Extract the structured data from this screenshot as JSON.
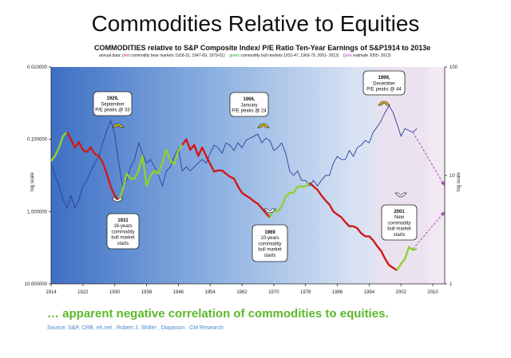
{
  "title": "Commodities Relative to Equities",
  "subtitle": "COMMODITIES relative to S&P Composite Index/ P/E Ratio Ten-Year Earnings of S&P1914 to 2013e",
  "legend": {
    "prefix": "annual data: (",
    "red": "red",
    "red_desc": " commodity bear markets 1918-31, 1947-69, 1979-01)",
    "green": "green",
    "green_desc": " commodity bull markets 1931-47, 1969-79, 2001- 2013)",
    "pink": "pink",
    "pink_desc": " estimate 2005- 2013)"
  },
  "footer": "… apparent negative correlation of commodities to equities.",
  "source": "Source:  S&P, CRB,  eh.net , Robert J.  Shiller  , Diapason  . CM Research",
  "colors": {
    "bear": "#d21818",
    "bull": "#8fd12e",
    "pe": "#2b3f9c",
    "estimate": "#a24fb0",
    "arrow": "#e4c400"
  },
  "chart_data": {
    "type": "line",
    "xlabel": "",
    "ylabel_left": "log scale",
    "ylabel_right": "log scale",
    "xlim": [
      1914,
      2013
    ],
    "x_ticks": [
      "1914",
      "1922",
      "1930",
      "1938",
      "1946",
      "1954",
      "1962",
      "1970",
      "1978",
      "1986",
      "1994",
      "2002",
      "2010"
    ],
    "left_axis": {
      "scale": "log",
      "inverted": true,
      "range": [
        0.01,
        10
      ],
      "ticks": [
        "0.010000",
        "0.100000",
        "1.000000",
        "10.000000"
      ]
    },
    "right_axis": {
      "scale": "log",
      "range": [
        1,
        100
      ],
      "ticks": [
        "100",
        "10",
        "1"
      ]
    },
    "series": [
      {
        "role": "commodities relative to S&P Composite Index",
        "axis": "left",
        "points": [
          [
            1914,
            0.2
          ],
          [
            1915,
            0.17
          ],
          [
            1916,
            0.13
          ],
          [
            1917,
            0.09
          ],
          [
            1918,
            0.08
          ],
          [
            1919,
            0.1
          ],
          [
            1920,
            0.13
          ],
          [
            1921,
            0.11
          ],
          [
            1922,
            0.14
          ],
          [
            1923,
            0.15
          ],
          [
            1924,
            0.13
          ],
          [
            1925,
            0.16
          ],
          [
            1926,
            0.17
          ],
          [
            1927,
            0.21
          ],
          [
            1928,
            0.3
          ],
          [
            1929,
            0.45
          ],
          [
            1930,
            0.6
          ],
          [
            1931,
            0.7
          ],
          [
            1932,
            0.5
          ],
          [
            1933,
            0.3
          ],
          [
            1934,
            0.35
          ],
          [
            1935,
            0.35
          ],
          [
            1936,
            0.27
          ],
          [
            1937,
            0.17
          ],
          [
            1938,
            0.44
          ],
          [
            1939,
            0.32
          ],
          [
            1940,
            0.27
          ],
          [
            1941,
            0.3
          ],
          [
            1942,
            0.21
          ],
          [
            1943,
            0.14
          ],
          [
            1944,
            0.2
          ],
          [
            1945,
            0.22
          ],
          [
            1946,
            0.14
          ],
          [
            1947,
            0.12
          ],
          [
            1948,
            0.1
          ],
          [
            1949,
            0.14
          ],
          [
            1950,
            0.12
          ],
          [
            1951,
            0.17
          ],
          [
            1952,
            0.13
          ],
          [
            1953,
            0.17
          ],
          [
            1954,
            0.22
          ],
          [
            1955,
            0.28
          ],
          [
            1956,
            0.27
          ],
          [
            1957,
            0.27
          ],
          [
            1958,
            0.3
          ],
          [
            1959,
            0.33
          ],
          [
            1960,
            0.35
          ],
          [
            1961,
            0.45
          ],
          [
            1962,
            0.55
          ],
          [
            1963,
            0.6
          ],
          [
            1964,
            0.65
          ],
          [
            1965,
            0.72
          ],
          [
            1966,
            0.78
          ],
          [
            1967,
            0.9
          ],
          [
            1968,
            1.05
          ],
          [
            1969,
            1.2
          ],
          [
            1970,
            0.95
          ],
          [
            1971,
            1.0
          ],
          [
            1972,
            0.85
          ],
          [
            1973,
            0.62
          ],
          [
            1974,
            0.55
          ],
          [
            1975,
            0.55
          ],
          [
            1976,
            0.45
          ],
          [
            1977,
            0.45
          ],
          [
            1978,
            0.45
          ],
          [
            1979,
            0.4
          ],
          [
            1980,
            0.45
          ],
          [
            1981,
            0.5
          ],
          [
            1982,
            0.6
          ],
          [
            1983,
            0.7
          ],
          [
            1984,
            0.8
          ],
          [
            1985,
            1.0
          ],
          [
            1986,
            1.1
          ],
          [
            1987,
            1.2
          ],
          [
            1988,
            1.4
          ],
          [
            1989,
            1.6
          ],
          [
            1990,
            1.6
          ],
          [
            1991,
            1.7
          ],
          [
            1992,
            2.0
          ],
          [
            1993,
            2.2
          ],
          [
            1994,
            2.2
          ],
          [
            1995,
            2.5
          ],
          [
            1996,
            3.0
          ],
          [
            1997,
            3.5
          ],
          [
            1998,
            4.5
          ],
          [
            1999,
            5.5
          ],
          [
            2000,
            6.0
          ],
          [
            2001,
            6.5
          ],
          [
            2002,
            5.3
          ],
          [
            2003,
            4.5
          ],
          [
            2004,
            3.1
          ],
          [
            2005,
            3.4
          ],
          [
            2006,
            3.3
          ]
        ],
        "segments": [
          {
            "phase": "bull",
            "from": 1914,
            "to": 1918
          },
          {
            "phase": "bear",
            "from": 1918,
            "to": 1931
          },
          {
            "phase": "bull",
            "from": 1931,
            "to": 1947
          },
          {
            "phase": "bear",
            "from": 1947,
            "to": 1969
          },
          {
            "phase": "bull",
            "from": 1969,
            "to": 1979
          },
          {
            "phase": "bear",
            "from": 1979,
            "to": 2001
          },
          {
            "phase": "bull",
            "from": 2001,
            "to": 2006
          }
        ]
      },
      {
        "role": "P/E Ratio Ten-Year Earnings of S&P",
        "axis": "right",
        "points": [
          [
            1914,
            13
          ],
          [
            1915,
            10
          ],
          [
            1916,
            8
          ],
          [
            1917,
            6
          ],
          [
            1918,
            5
          ],
          [
            1919,
            6.5
          ],
          [
            1920,
            5
          ],
          [
            1921,
            6
          ],
          [
            1922,
            8
          ],
          [
            1923,
            9
          ],
          [
            1924,
            11
          ],
          [
            1925,
            13
          ],
          [
            1926,
            15
          ],
          [
            1927,
            20
          ],
          [
            1928,
            26
          ],
          [
            1929,
            32
          ],
          [
            1930,
            24
          ],
          [
            1931,
            13
          ],
          [
            1932,
            8
          ],
          [
            1933,
            9
          ],
          [
            1934,
            12
          ],
          [
            1935,
            14
          ],
          [
            1936,
            20
          ],
          [
            1937,
            16
          ],
          [
            1938,
            13
          ],
          [
            1939,
            14
          ],
          [
            1940,
            12
          ],
          [
            1941,
            10
          ],
          [
            1942,
            8
          ],
          [
            1943,
            11
          ],
          [
            1944,
            12
          ],
          [
            1945,
            15
          ],
          [
            1946,
            18
          ],
          [
            1947,
            11
          ],
          [
            1948,
            12
          ],
          [
            1949,
            11
          ],
          [
            1950,
            12
          ],
          [
            1951,
            13
          ],
          [
            1952,
            14
          ],
          [
            1953,
            13
          ],
          [
            1954,
            16
          ],
          [
            1955,
            19
          ],
          [
            1956,
            18
          ],
          [
            1957,
            16
          ],
          [
            1958,
            20
          ],
          [
            1959,
            19
          ],
          [
            1960,
            17
          ],
          [
            1961,
            20
          ],
          [
            1962,
            18
          ],
          [
            1963,
            21
          ],
          [
            1964,
            22
          ],
          [
            1965,
            23
          ],
          [
            1966,
            24
          ],
          [
            1967,
            20
          ],
          [
            1968,
            22
          ],
          [
            1969,
            21
          ],
          [
            1970,
            17
          ],
          [
            1971,
            18
          ],
          [
            1972,
            20
          ],
          [
            1973,
            16
          ],
          [
            1974,
            11
          ],
          [
            1975,
            10
          ],
          [
            1976,
            11
          ],
          [
            1977,
            9
          ],
          [
            1978,
            9
          ],
          [
            1979,
            8
          ],
          [
            1980,
            9
          ],
          [
            1981,
            8
          ],
          [
            1982,
            9
          ],
          [
            1983,
            10
          ],
          [
            1984,
            10
          ],
          [
            1985,
            13
          ],
          [
            1986,
            15
          ],
          [
            1987,
            14
          ],
          [
            1988,
            14
          ],
          [
            1989,
            17
          ],
          [
            1990,
            15
          ],
          [
            1991,
            18
          ],
          [
            1992,
            19
          ],
          [
            1993,
            21
          ],
          [
            1994,
            20
          ],
          [
            1995,
            25
          ],
          [
            1996,
            28
          ],
          [
            1997,
            32
          ],
          [
            1998,
            38
          ],
          [
            1999,
            44
          ],
          [
            2000,
            38
          ],
          [
            2001,
            30
          ],
          [
            2002,
            23
          ],
          [
            2003,
            27
          ],
          [
            2004,
            26
          ],
          [
            2005,
            25
          ],
          [
            2006,
            27
          ]
        ]
      },
      {
        "role": "estimate",
        "axis": "right",
        "points": [
          [
            2005,
            25
          ],
          [
            2013,
            8
          ]
        ]
      },
      {
        "role": "estimate",
        "axis": "left",
        "points": [
          [
            2005,
            3.3
          ],
          [
            2013,
            1.0
          ]
        ]
      }
    ],
    "annotations": [
      {
        "lines": [
          "1929,",
          "September",
          "P/E peaks @ 33"
        ],
        "year": 1929,
        "arrow": "up"
      },
      {
        "lines": [
          "1966,",
          "January",
          "P/E peaks @ 24"
        ],
        "year": 1966,
        "arrow": "up"
      },
      {
        "lines": [
          "1999,",
          "December",
          "P/E peaks @ 44"
        ],
        "year": 1999,
        "arrow": "up"
      },
      {
        "lines": [
          "1931",
          "16-years",
          "commodity",
          "bull market",
          "starts"
        ],
        "year": 1931,
        "arrow": "down"
      },
      {
        "lines": [
          "1969",
          "10-years",
          "commodity",
          "bull market",
          "starts"
        ],
        "year": 1969,
        "arrow": "down"
      },
      {
        "lines": [
          "2001",
          "New",
          "commodity",
          "bull market",
          "starts"
        ],
        "year": 2001,
        "arrow": "down"
      }
    ]
  }
}
